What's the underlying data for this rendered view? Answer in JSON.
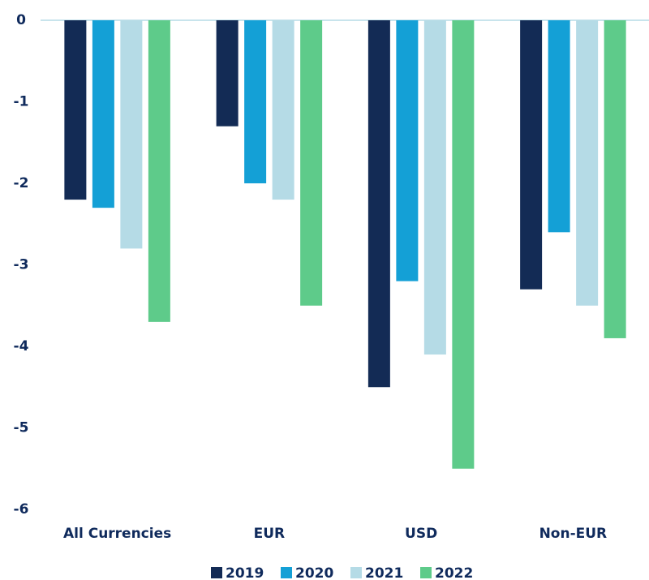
{
  "chart_data": {
    "type": "bar",
    "categories": [
      "All Currencies",
      "EUR",
      "USD",
      "Non-EUR"
    ],
    "series": [
      {
        "name": "2019",
        "color": "#132b55",
        "values": [
          -2.2,
          -1.3,
          -4.5,
          -3.3
        ]
      },
      {
        "name": "2020",
        "color": "#14a0d6",
        "values": [
          -2.3,
          -2.0,
          -3.2,
          -2.6
        ]
      },
      {
        "name": "2021",
        "color": "#b5dbe6",
        "values": [
          -2.8,
          -2.2,
          -4.1,
          -3.5
        ]
      },
      {
        "name": "2022",
        "color": "#5ecb8a",
        "values": [
          -3.7,
          -3.5,
          -5.5,
          -3.9
        ]
      }
    ],
    "ylim": [
      -6,
      0
    ],
    "yticks": [
      -6,
      -5,
      -4,
      -3,
      -2,
      -1,
      0
    ],
    "grid": false,
    "legend": "bottom"
  }
}
